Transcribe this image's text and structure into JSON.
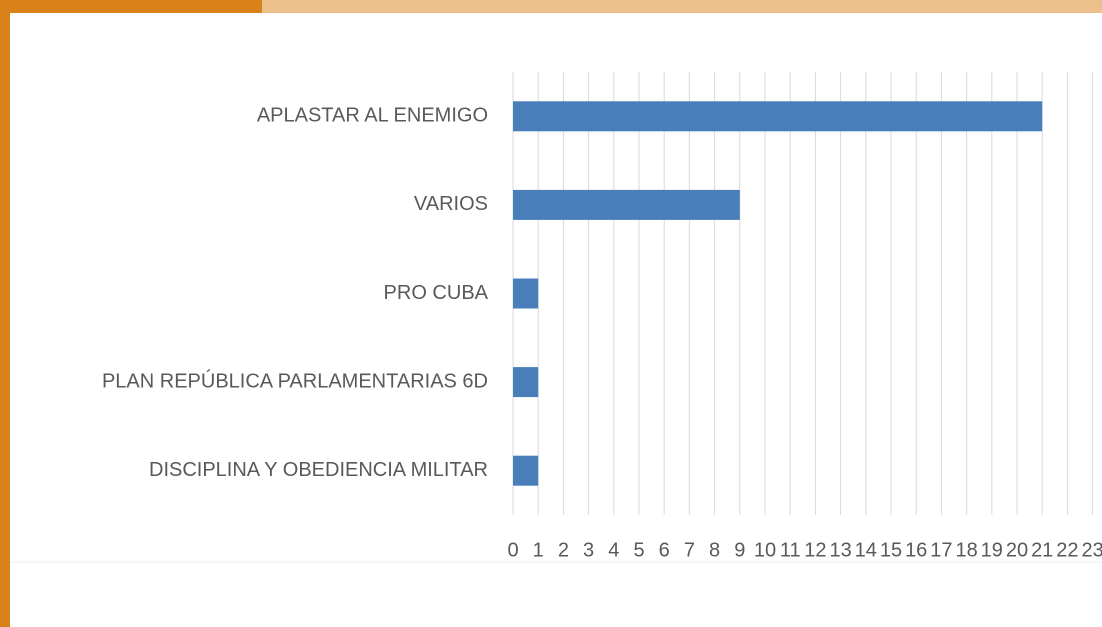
{
  "chart_data": {
    "type": "bar",
    "orientation": "horizontal",
    "categories": [
      "APLASTAR AL ENEMIGO",
      "VARIOS",
      "PRO CUBA",
      "PLAN REPÚBLICA PARLAMENTARIAS 6D",
      "DISCIPLINA Y OBEDIENCIA MILITAR"
    ],
    "values": [
      21,
      9,
      1,
      1,
      1
    ],
    "color": "#4a7ebb",
    "xlim": [
      0,
      23
    ],
    "xticks": [
      0,
      1,
      2,
      3,
      4,
      5,
      6,
      7,
      8,
      9,
      10,
      11,
      12,
      13,
      14,
      15,
      16,
      17,
      18,
      19,
      20,
      21,
      22,
      23
    ],
    "grid": true
  }
}
